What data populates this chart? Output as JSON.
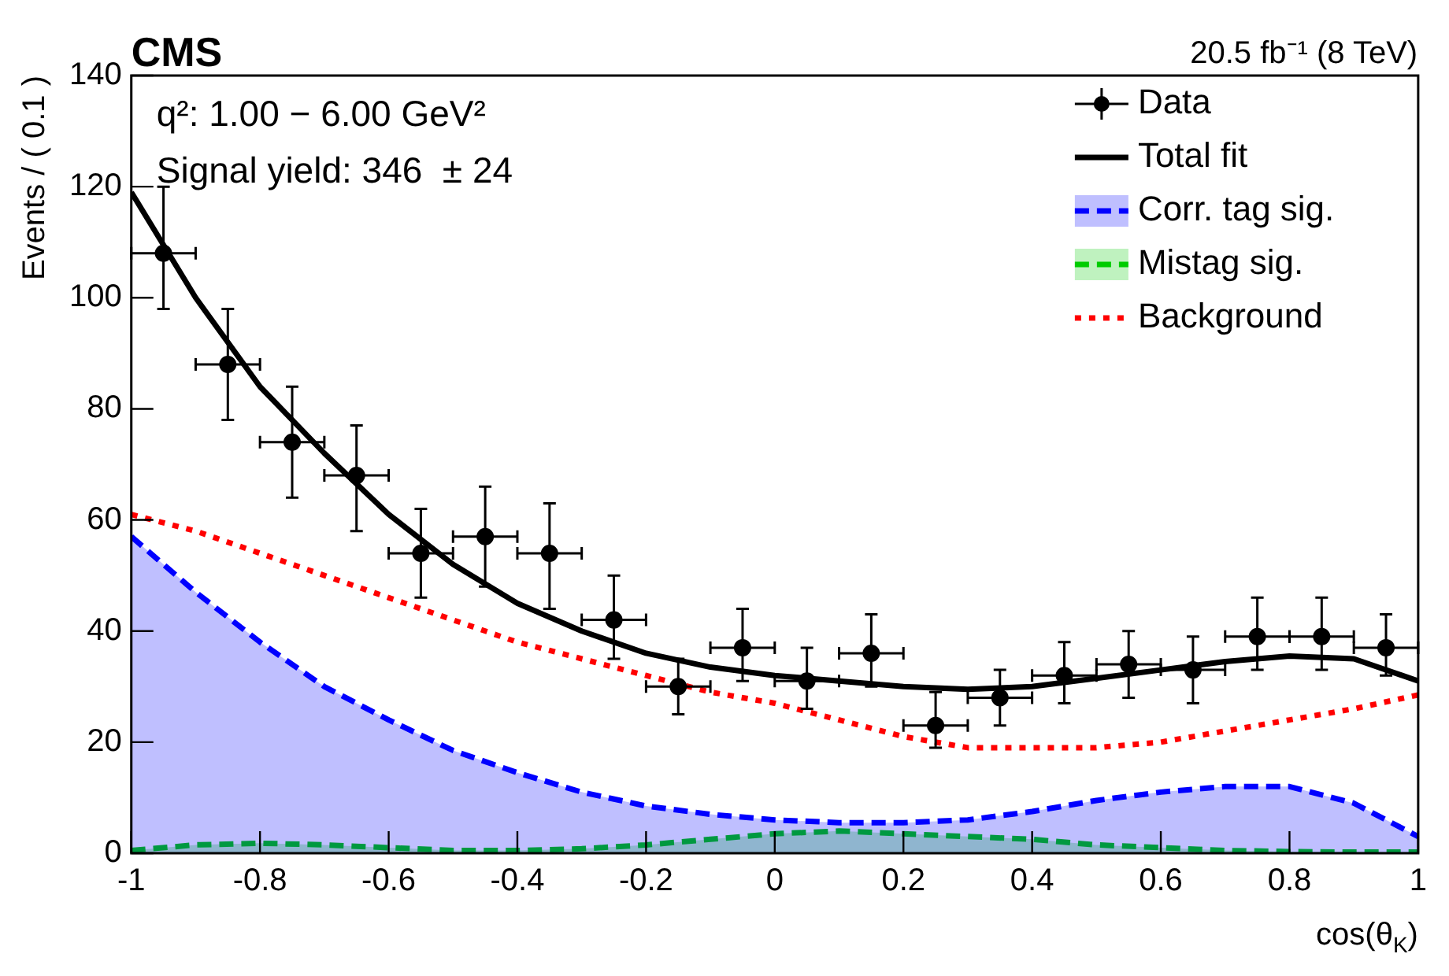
{
  "chart_data": {
    "type": "scatter",
    "title": "CMS",
    "subtitle": "20.5 fb⁻¹ (8 TeV)",
    "xlabel": "cos(θ$_{K}$)",
    "ylabel": "Events / ( 0.1 )",
    "annotations": [
      "q²: 1.00 − 6.00 GeV²",
      "Signal yield: 346  ± 24"
    ],
    "xlim": [
      -1,
      1
    ],
    "xticks": [
      -1,
      -0.8,
      -0.6,
      -0.4,
      -0.2,
      0,
      0.2,
      0.4,
      0.6,
      0.8,
      1
    ],
    "ylim": [
      0,
      140
    ],
    "yticks": [
      0,
      20,
      40,
      60,
      80,
      100,
      120,
      140
    ],
    "grid": false,
    "legend": "top right",
    "series": [
      {
        "name": "Data",
        "marker": "circle",
        "color": "#000000",
        "x": [
          -0.95,
          -0.85,
          -0.75,
          -0.65,
          -0.55,
          -0.45,
          -0.35,
          -0.25,
          -0.15,
          -0.05,
          0.05,
          0.15,
          0.25,
          0.35,
          0.45,
          0.55,
          0.65,
          0.75,
          0.85,
          0.95
        ],
        "values": [
          108,
          88,
          74,
          68,
          54,
          57,
          54,
          42,
          30,
          37,
          31,
          36,
          23,
          28,
          32,
          34,
          33,
          39,
          39,
          37
        ],
        "errors": [
          [
            98,
            120
          ],
          [
            78,
            98
          ],
          [
            64,
            84
          ],
          [
            58,
            77
          ],
          [
            46,
            62
          ],
          [
            48,
            66
          ],
          [
            44,
            63
          ],
          [
            35,
            50
          ],
          [
            25,
            35
          ],
          [
            31,
            44
          ],
          [
            26,
            37
          ],
          [
            30,
            43
          ],
          [
            19,
            29
          ],
          [
            23,
            33
          ],
          [
            27,
            38
          ],
          [
            28,
            40
          ],
          [
            27,
            39
          ],
          [
            33,
            46
          ],
          [
            33,
            46
          ],
          [
            32,
            43
          ]
        ],
        "xerrors": [
          0.05,
          0.05,
          0.05,
          0.05,
          0.05,
          0.05,
          0.05,
          0.05,
          0.05,
          0.05,
          0.05,
          0.05,
          0.05,
          0.05,
          0.05,
          0.05,
          0.05,
          0.05,
          0.05,
          0.05
        ]
      },
      {
        "name": "Total fit",
        "type": "line",
        "line_style": "solid",
        "color": "#000000",
        "x": [
          -1,
          -0.9,
          -0.8,
          -0.7,
          -0.6,
          -0.5,
          -0.4,
          -0.3,
          -0.2,
          -0.1,
          0,
          0.1,
          0.2,
          0.3,
          0.4,
          0.5,
          0.6,
          0.7,
          0.8,
          0.9,
          1
        ],
        "values": [
          119,
          100,
          84,
          72,
          61,
          52,
          45,
          40,
          36,
          33.5,
          32,
          31,
          30,
          29.5,
          30,
          31.5,
          33,
          34.5,
          35.5,
          35,
          31
        ]
      },
      {
        "name": "Corr. tag sig.",
        "type": "area",
        "line_style": "dashed",
        "color": "#0000ff",
        "x": [
          -1,
          -0.9,
          -0.8,
          -0.7,
          -0.6,
          -0.5,
          -0.4,
          -0.3,
          -0.2,
          -0.1,
          0,
          0.1,
          0.2,
          0.3,
          0.4,
          0.5,
          0.6,
          0.7,
          0.8,
          0.9,
          1
        ],
        "values": [
          57,
          47,
          38,
          30,
          24,
          18.5,
          14.5,
          11,
          8.5,
          7,
          6,
          5.5,
          5.5,
          6,
          7.5,
          9.5,
          11,
          12,
          12,
          9,
          3
        ]
      },
      {
        "name": "Mistag sig.",
        "type": "area",
        "line_style": "dashed",
        "color": "#00cc00",
        "x": [
          -1,
          -0.9,
          -0.8,
          -0.7,
          -0.6,
          -0.5,
          -0.4,
          -0.3,
          -0.2,
          -0.1,
          0,
          0.1,
          0.2,
          0.3,
          0.4,
          0.5,
          0.6,
          0.7,
          0.8,
          0.9,
          1
        ],
        "values": [
          0.5,
          1.5,
          1.8,
          1.5,
          1,
          0.5,
          0.5,
          0.8,
          1.5,
          2.5,
          3.5,
          4,
          3.5,
          3,
          2.5,
          1.5,
          1,
          0.5,
          0.3,
          0.2,
          0.2
        ]
      },
      {
        "name": "Background",
        "type": "line",
        "line_style": "dotted",
        "color": "#ff0000",
        "x": [
          -1,
          -0.9,
          -0.8,
          -0.7,
          -0.6,
          -0.5,
          -0.4,
          -0.3,
          -0.2,
          -0.1,
          0,
          0.1,
          0.2,
          0.3,
          0.4,
          0.5,
          0.6,
          0.7,
          0.8,
          0.9,
          1
        ],
        "values": [
          61,
          58,
          54,
          50,
          46,
          42,
          38,
          35,
          32,
          29,
          27,
          24,
          21,
          19,
          19,
          19,
          20,
          22,
          24,
          26,
          28.5
        ]
      }
    ]
  }
}
